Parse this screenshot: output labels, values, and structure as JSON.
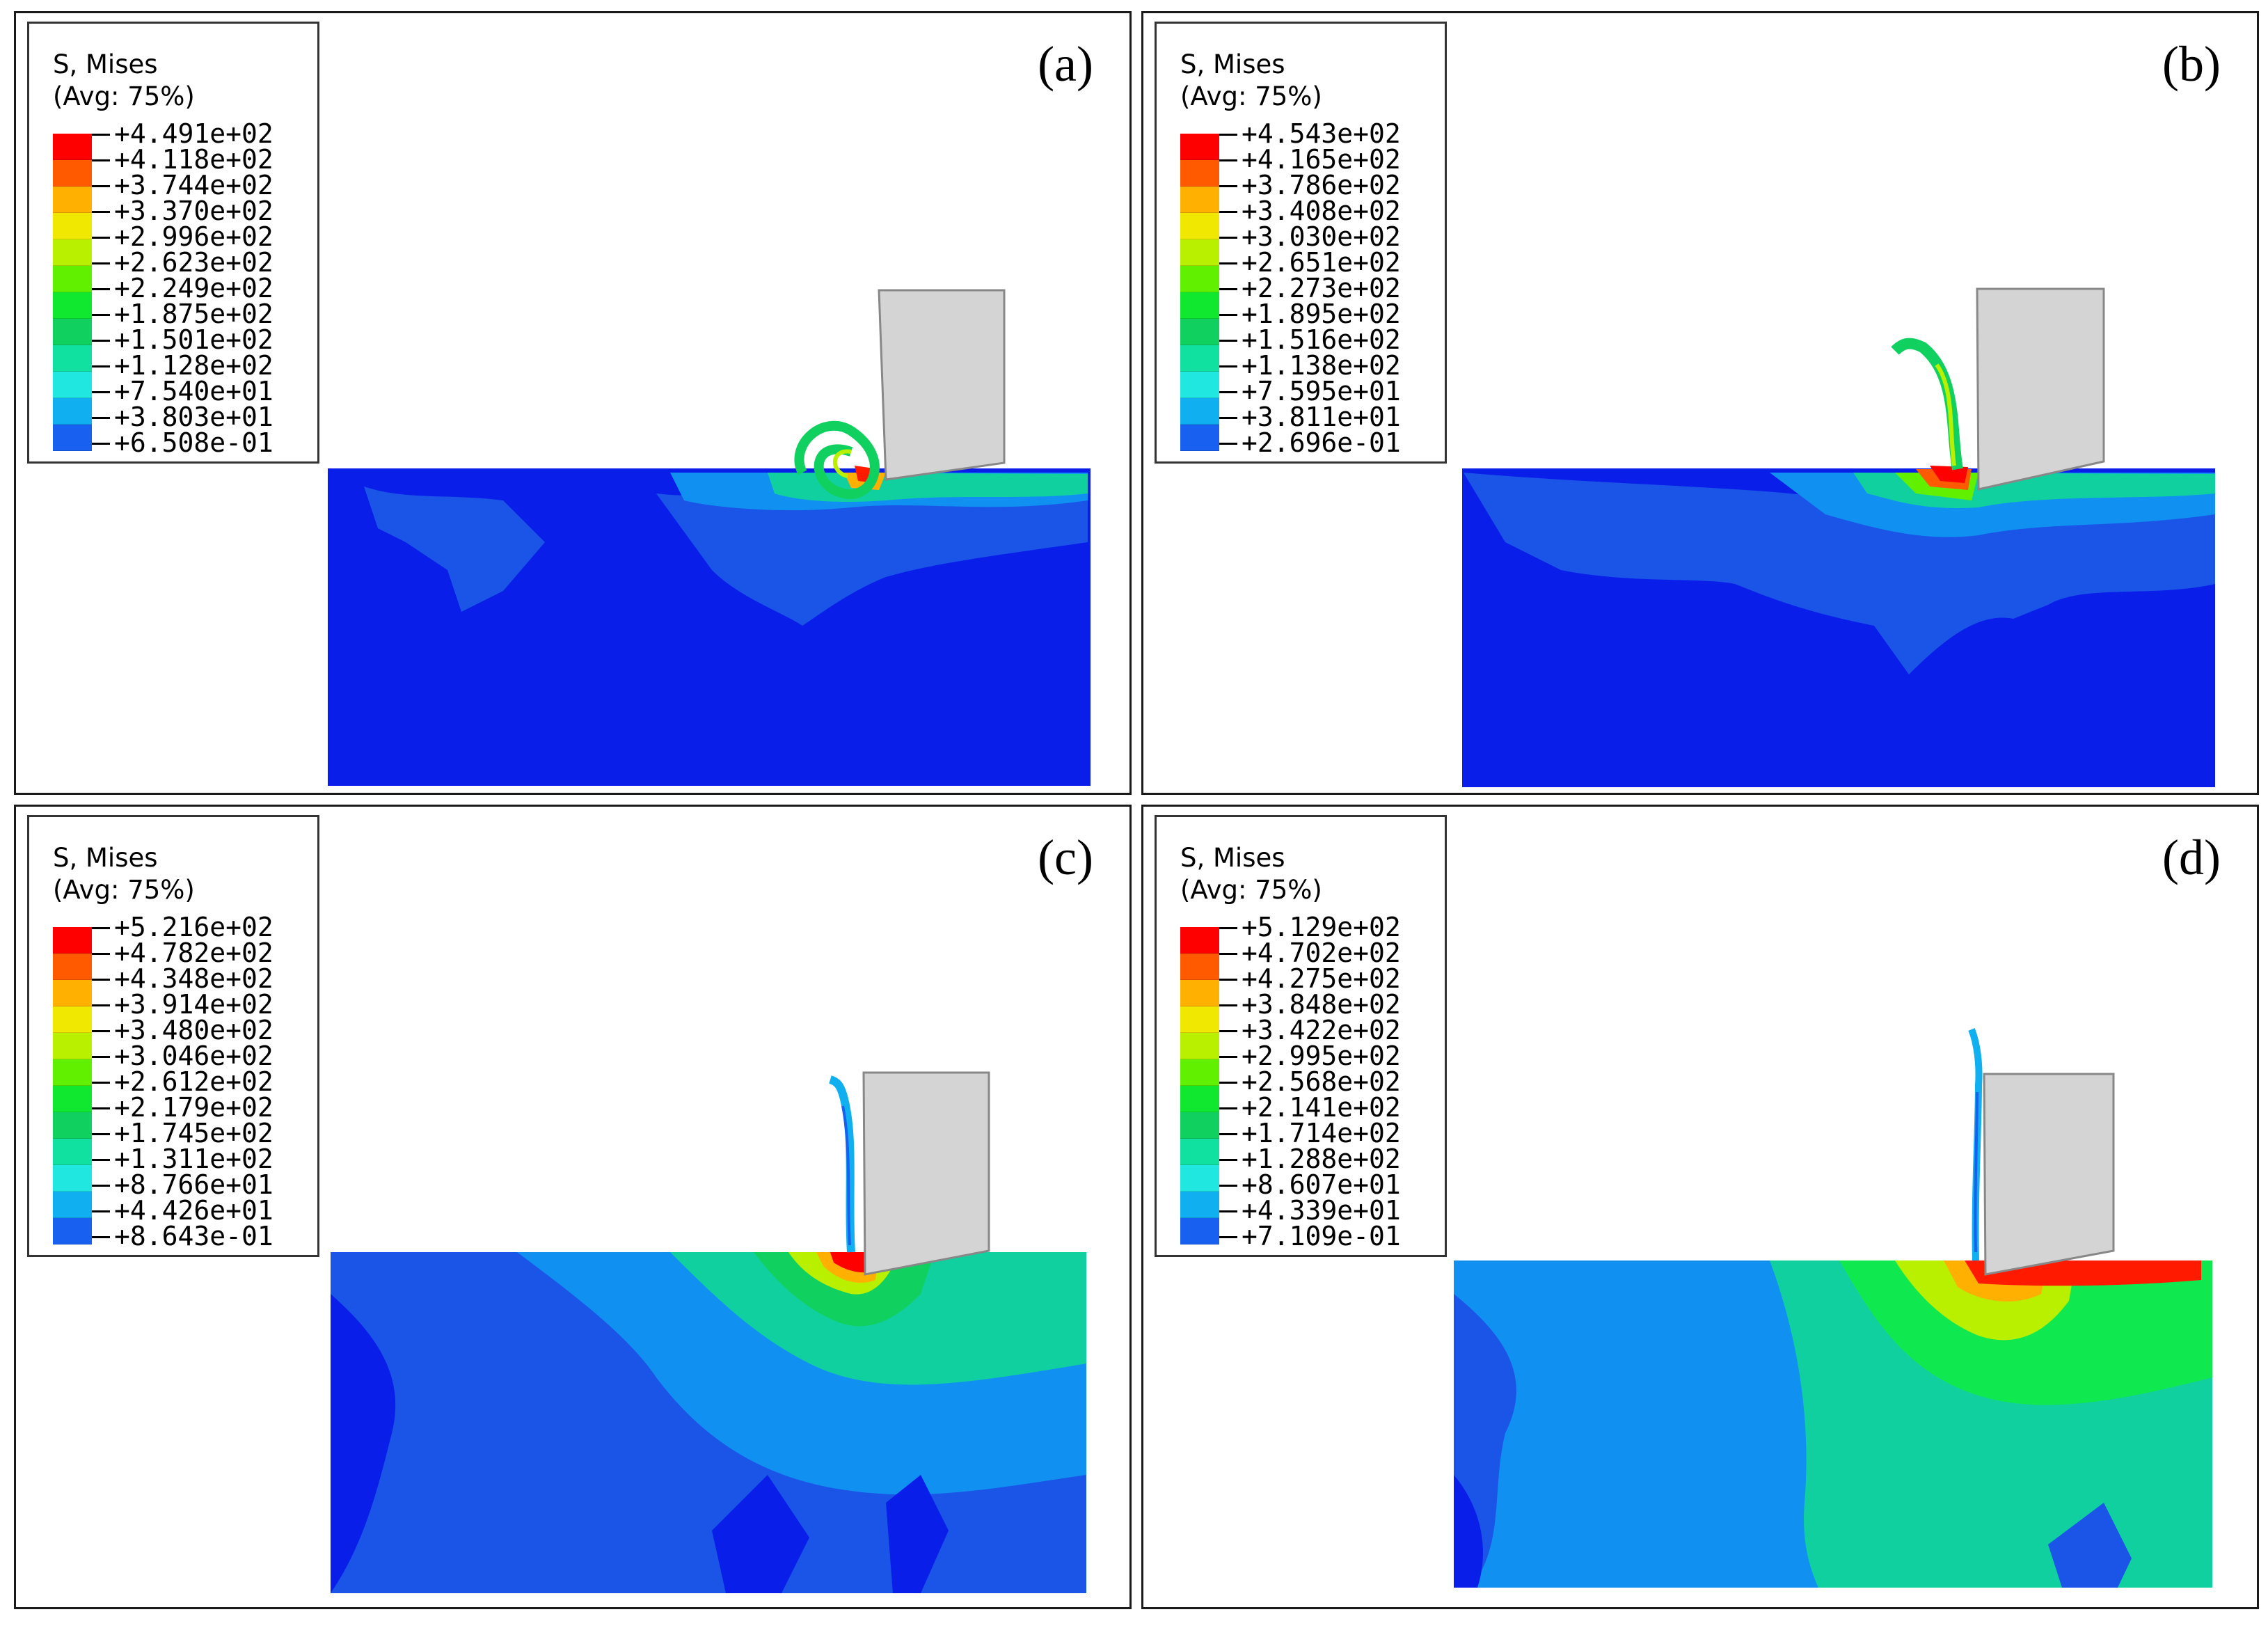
{
  "panels": [
    {
      "id": "a",
      "label": "(a)",
      "legend": {
        "title": "S, Mises",
        "subtitle": "(Avg: 75%)",
        "values": [
          "+4.491e+02",
          "+4.118e+02",
          "+3.744e+02",
          "+3.370e+02",
          "+2.996e+02",
          "+2.623e+02",
          "+2.249e+02",
          "+1.875e+02",
          "+1.501e+02",
          "+1.128e+02",
          "+7.540e+01",
          "+3.803e+01",
          "+6.508e-01"
        ]
      }
    },
    {
      "id": "b",
      "label": "(b)",
      "legend": {
        "title": "S, Mises",
        "subtitle": "(Avg: 75%)",
        "values": [
          "+4.543e+02",
          "+4.165e+02",
          "+3.786e+02",
          "+3.408e+02",
          "+3.030e+02",
          "+2.651e+02",
          "+2.273e+02",
          "+1.895e+02",
          "+1.516e+02",
          "+1.138e+02",
          "+7.595e+01",
          "+3.811e+01",
          "+2.696e-01"
        ]
      }
    },
    {
      "id": "c",
      "label": "(c)",
      "legend": {
        "title": "S, Mises",
        "subtitle": "(Avg: 75%)",
        "values": [
          "+5.216e+02",
          "+4.782e+02",
          "+4.348e+02",
          "+3.914e+02",
          "+3.480e+02",
          "+3.046e+02",
          "+2.612e+02",
          "+2.179e+02",
          "+1.745e+02",
          "+1.311e+02",
          "+8.766e+01",
          "+4.426e+01",
          "+8.643e-01"
        ]
      }
    },
    {
      "id": "d",
      "label": "(d)",
      "legend": {
        "title": "S, Mises",
        "subtitle": "(Avg: 75%)",
        "values": [
          "+5.129e+02",
          "+4.702e+02",
          "+4.275e+02",
          "+3.848e+02",
          "+3.422e+02",
          "+2.995e+02",
          "+2.568e+02",
          "+2.141e+02",
          "+1.714e+02",
          "+1.288e+02",
          "+8.607e+01",
          "+4.339e+01",
          "+7.109e-01"
        ]
      }
    }
  ],
  "colorbar": [
    "#ff0000",
    "#ff5a00",
    "#ffb000",
    "#f0e800",
    "#b8f000",
    "#60f000",
    "#10e830",
    "#10d060",
    "#10e0a0",
    "#20e8e0",
    "#10b0f0",
    "#1860f0",
    "#0018ff"
  ],
  "colors": {
    "workpiece_base": "#0a1eea",
    "tool": "#d4d4d4",
    "tool_edge": "#888888",
    "frame": "#1a1a1a"
  }
}
